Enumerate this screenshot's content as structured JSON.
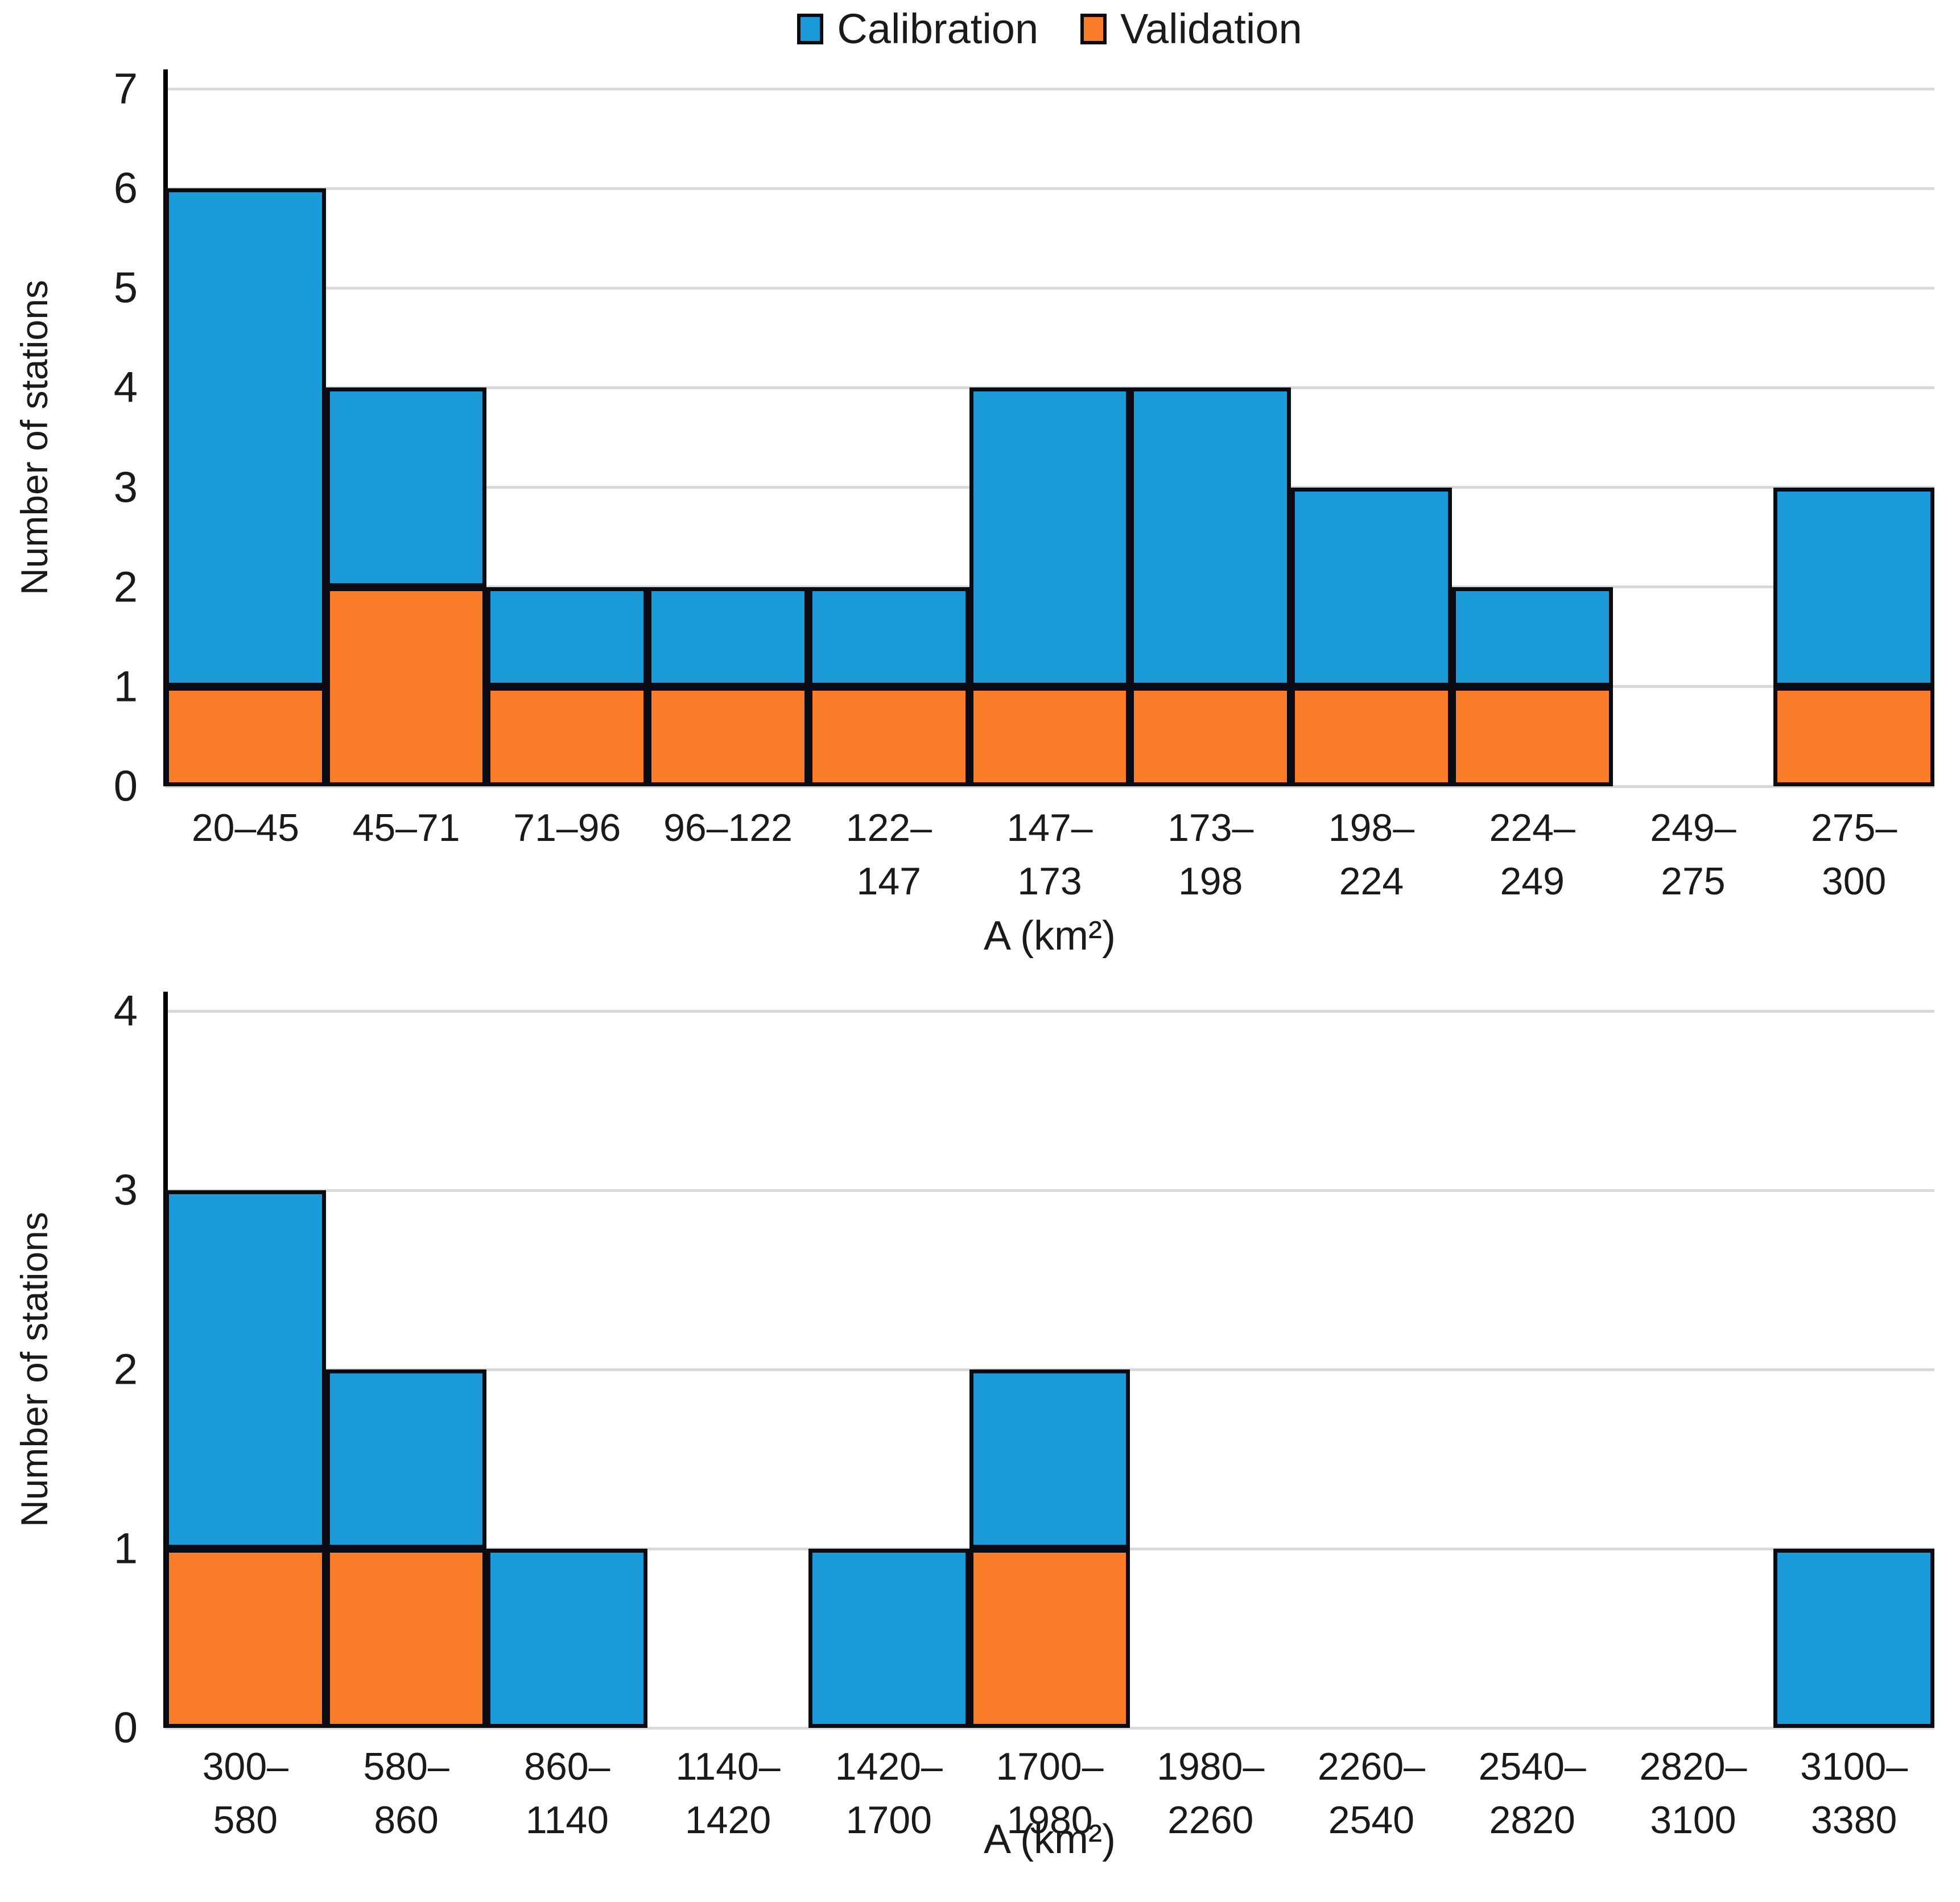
{
  "figure": {
    "legend": [
      {
        "label": "Calibration",
        "color_key": "calibration"
      },
      {
        "label": "Validation",
        "color_key": "validation"
      }
    ],
    "legend_position": "top-center"
  },
  "colors": {
    "calibration": "#1b9cd8",
    "validation": "#f97d28",
    "bar_outline": "#0b0b14",
    "gridline": "#d9d9d9",
    "axis_line": "#000000",
    "text": "#1a1a1a"
  },
  "chart_data": [
    {
      "type": "bar",
      "stacked": true,
      "title": "",
      "xlabel": "A (km²)",
      "ylabel": "Number of stations",
      "ylim": [
        0,
        7
      ],
      "yticks": [
        0,
        1,
        2,
        3,
        4,
        5,
        6,
        7
      ],
      "grid": "horizontal",
      "categories": [
        "20–45",
        "45–71",
        "71–96",
        "96–122",
        "122–\n147",
        "147–\n173",
        "173–\n198",
        "198–\n224",
        "224–\n249",
        "249–\n275",
        "275–\n300"
      ],
      "series": [
        {
          "name": "Validation",
          "color_key": "validation",
          "values": [
            1,
            2,
            1,
            1,
            1,
            1,
            1,
            1,
            1,
            0,
            1
          ]
        },
        {
          "name": "Calibration",
          "color_key": "calibration",
          "values": [
            5,
            2,
            1,
            1,
            1,
            3,
            3,
            2,
            1,
            0,
            2
          ]
        }
      ],
      "stack_totals": [
        6,
        4,
        2,
        2,
        2,
        4,
        4,
        3,
        2,
        0,
        3
      ]
    },
    {
      "type": "bar",
      "stacked": true,
      "title": "",
      "xlabel": "A (km²)",
      "ylabel": "Number of stations",
      "ylim": [
        0,
        4
      ],
      "yticks": [
        0,
        1,
        2,
        3,
        4
      ],
      "grid": "horizontal",
      "categories": [
        "300–\n580",
        "580–\n860",
        "860–\n1140",
        "1140–\n1420",
        "1420–\n1700",
        "1700–\n1980",
        "1980–\n2260",
        "2260–\n2540",
        "2540–\n2820",
        "2820–\n3100",
        "3100–\n3380"
      ],
      "series": [
        {
          "name": "Validation",
          "color_key": "validation",
          "values": [
            1,
            1,
            0,
            0,
            0,
            1,
            0,
            0,
            0,
            0,
            0
          ]
        },
        {
          "name": "Calibration",
          "color_key": "calibration",
          "values": [
            2,
            1,
            1,
            0,
            1,
            1,
            0,
            0,
            0,
            0,
            1
          ]
        }
      ],
      "stack_totals": [
        3,
        2,
        1,
        0,
        1,
        2,
        0,
        0,
        0,
        0,
        1
      ]
    }
  ]
}
